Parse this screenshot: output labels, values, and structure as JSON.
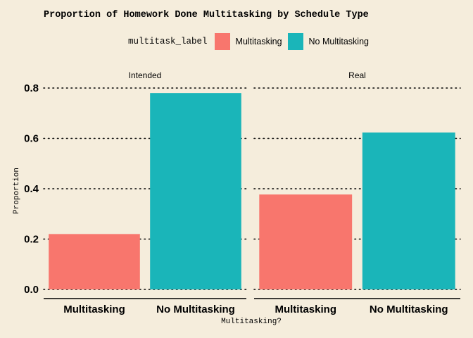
{
  "chart_data": {
    "type": "bar",
    "title": "Proportion of Homework Done Multitasking by Schedule Type",
    "xlabel": "Multitasking?",
    "ylabel": "Proportion",
    "ylim": [
      0,
      0.8
    ],
    "yticks": [
      "0.0",
      "0.2",
      "0.4",
      "0.6",
      "0.8"
    ],
    "grid": "horizontal dotted",
    "legend_position": "top",
    "legend": {
      "title": "multitask_label",
      "entries": [
        {
          "label": "Multitasking",
          "color": "#f8766d"
        },
        {
          "label": "No Multitasking",
          "color": "#1ab5b9"
        }
      ]
    },
    "categories": [
      "Multitasking",
      "No Multitasking"
    ],
    "facets": [
      {
        "label": "Intended",
        "values": [
          0.22,
          0.78
        ]
      },
      {
        "label": "Real",
        "values": [
          0.377,
          0.623
        ]
      }
    ]
  }
}
